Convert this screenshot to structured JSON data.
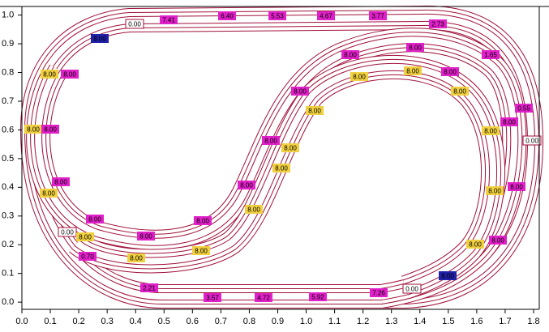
{
  "chart_data": {
    "type": "track",
    "xlim": [
      0,
      1.82
    ],
    "ylim": [
      -0.025,
      1.03
    ],
    "xticks": [
      {
        "value": 0,
        "label": "0.0"
      },
      {
        "value": 0.1,
        "label": "0.1"
      },
      {
        "value": 0.2,
        "label": "0.2"
      },
      {
        "value": 0.3,
        "label": "0.3"
      },
      {
        "value": 0.4,
        "label": "0.4"
      },
      {
        "value": 0.5,
        "label": "0.5"
      },
      {
        "value": 0.6,
        "label": "0.6"
      },
      {
        "value": 0.7,
        "label": "0.7"
      },
      {
        "value": 0.8,
        "label": "0.8"
      },
      {
        "value": 0.9,
        "label": "0.9"
      },
      {
        "value": 1.0,
        "label": "1.0"
      },
      {
        "value": 1.1,
        "label": "1.1"
      },
      {
        "value": 1.2,
        "label": "1.2"
      },
      {
        "value": 1.3,
        "label": "1.3"
      },
      {
        "value": 1.4,
        "label": "1.4"
      },
      {
        "value": 1.5,
        "label": "1.5"
      },
      {
        "value": 1.6,
        "label": "1.6"
      },
      {
        "value": 1.7,
        "label": "1.7"
      },
      {
        "value": 1.8,
        "label": "1.8"
      }
    ],
    "yticks": [
      {
        "value": 0,
        "label": "0.0"
      },
      {
        "value": 0.1,
        "label": "0.1"
      },
      {
        "value": 0.2,
        "label": "0.2"
      },
      {
        "value": 0.3,
        "label": "0.3"
      },
      {
        "value": 0.4,
        "label": "0.4"
      },
      {
        "value": 0.5,
        "label": "0.5"
      },
      {
        "value": 0.6,
        "label": "0.6"
      },
      {
        "value": 0.7,
        "label": "0.7"
      },
      {
        "value": 0.8,
        "label": "0.8"
      },
      {
        "value": 0.9,
        "label": "0.9"
      },
      {
        "value": 1.0,
        "label": "1.0"
      }
    ],
    "track_color": "#a0103a",
    "labels": [
      {
        "text": "7.41",
        "color": "#e020c8"
      },
      {
        "text": "6.40",
        "color": "#e020c8"
      },
      {
        "text": "5.53",
        "color": "#e020c8"
      },
      {
        "text": "4.67",
        "color": "#e020c8"
      },
      {
        "text": "3.77",
        "color": "#e020c8"
      },
      {
        "text": "2.73",
        "color": "#e020c8"
      },
      {
        "text": "8.00",
        "color": "#2020a8"
      },
      {
        "text": "0.00",
        "color": "outline"
      },
      {
        "text": "8.00",
        "color": "#e020c8"
      },
      {
        "text": "8.00",
        "color": "#e020c8"
      },
      {
        "text": "1.65",
        "color": "#e020c8"
      },
      {
        "text": "8.00",
        "color": "#f0d040"
      },
      {
        "text": "8.00",
        "color": "#e020c8"
      },
      {
        "text": "8.00",
        "color": "#e020c8"
      },
      {
        "text": "8.00",
        "color": "#f0d040"
      },
      {
        "text": "8.00",
        "color": "#f0d040"
      },
      {
        "text": "8.00",
        "color": "#f0d040"
      },
      {
        "text": "8.00",
        "color": "#e020c8"
      },
      {
        "text": "8.00",
        "color": "#f0d040"
      },
      {
        "text": "0.55",
        "color": "#e020c8"
      },
      {
        "text": "8.00",
        "color": "#e020c8"
      },
      {
        "text": "8.00",
        "color": "#f0d040"
      },
      {
        "text": "8.00",
        "color": "#e020c8"
      },
      {
        "text": "8.00",
        "color": "#f0d040"
      },
      {
        "text": "0.00",
        "color": "outline"
      },
      {
        "text": "8.00",
        "color": "#e020c8"
      },
      {
        "text": "8.00",
        "color": "#f0d040"
      },
      {
        "text": "8.00",
        "color": "#f0d040"
      },
      {
        "text": "8.00",
        "color": "#e020c8"
      },
      {
        "text": "8.00",
        "color": "#e020c8"
      },
      {
        "text": "8.00",
        "color": "#e020c8"
      },
      {
        "text": "8.00",
        "color": "#f0d040"
      },
      {
        "text": "8.00",
        "color": "#f0d040"
      },
      {
        "text": "8.00",
        "color": "#f0d040"
      },
      {
        "text": "8.00",
        "color": "#e020c8"
      },
      {
        "text": "8.00",
        "color": "#e020c8"
      },
      {
        "text": "0.00",
        "color": "outline"
      },
      {
        "text": "8.00",
        "color": "#f0d040"
      },
      {
        "text": "8.00",
        "color": "#e020c8"
      },
      {
        "text": "8.00",
        "color": "#e020c8"
      },
      {
        "text": "8.00",
        "color": "#f0d040"
      },
      {
        "text": "0.70",
        "color": "#e020c8"
      },
      {
        "text": "8.00",
        "color": "#f0d040"
      },
      {
        "text": "8.00",
        "color": "#f0d040"
      },
      {
        "text": "8.00",
        "color": "#2020a8"
      },
      {
        "text": "2.21",
        "color": "#e020c8"
      },
      {
        "text": "3.57",
        "color": "#e020c8"
      },
      {
        "text": "4.72",
        "color": "#e020c8"
      },
      {
        "text": "5.92",
        "color": "#e020c8"
      },
      {
        "text": "7.26",
        "color": "#e020c8"
      },
      {
        "text": "0.00",
        "color": "outline"
      }
    ]
  }
}
